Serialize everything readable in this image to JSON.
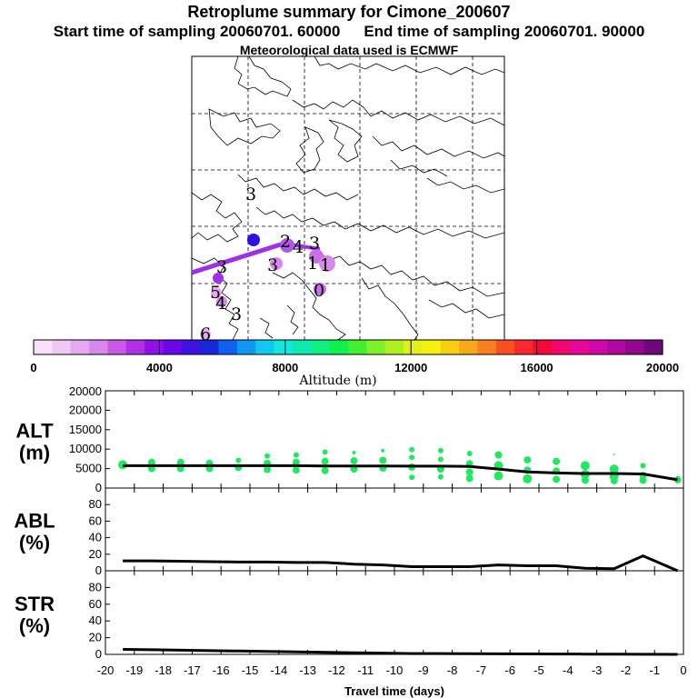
{
  "header": {
    "title": "Retroplume summary for Cimone_200607",
    "start_label": "Start time of sampling 20060701. 60000",
    "end_label": "End time of sampling 20060701. 90000",
    "met_label": "Meteorological data used is ECMWF"
  },
  "map": {
    "plume_labels": [
      "3",
      "2",
      "4",
      "1",
      "3",
      "3",
      "5",
      "4",
      "3",
      "6",
      "0",
      "3",
      "1"
    ],
    "colorbar": {
      "ticks": [
        "0",
        "4000",
        "8000",
        "12000",
        "16000",
        "20000"
      ],
      "label": "Altitude (m)",
      "colors": [
        "#f7e0f8",
        "#f0c8f4",
        "#e6a8f0",
        "#d888ec",
        "#c85ae6",
        "#b030e8",
        "#9010ec",
        "#6808e8",
        "#4010e0",
        "#1828d8",
        "#1060f0",
        "#1098f0",
        "#10c8f0",
        "#10e8e0",
        "#10e8b0",
        "#10f080",
        "#10f050",
        "#40f030",
        "#80f028",
        "#b0f020",
        "#e0f018",
        "#f8f010",
        "#f8d010",
        "#f8a818",
        "#f88020",
        "#f85020",
        "#f82830",
        "#f80838",
        "#f00870",
        "#e80898",
        "#d008a8",
        "#b008a0",
        "#900890",
        "#700878"
      ]
    }
  },
  "chart_data": [
    {
      "type": "line",
      "name": "ALT",
      "ylabel_line1": "ALT",
      "ylabel_line2": "(m)",
      "x": [
        -19.4,
        -18.4,
        -17.4,
        -16.4,
        -15.4,
        -14.4,
        -13.4,
        -12.4,
        -11.4,
        -10.4,
        -9.4,
        -8.4,
        -7.4,
        -6.4,
        -5.4,
        -4.4,
        -3.4,
        -2.4,
        -1.4,
        -0.2
      ],
      "y": [
        4600,
        4600,
        4600,
        4600,
        4600,
        4600,
        4600,
        4550,
        4550,
        4550,
        4500,
        4500,
        4450,
        3900,
        3300,
        3100,
        3000,
        3000,
        2900,
        1700
      ],
      "yticks": [
        "0",
        "5000",
        "10000",
        "15000",
        "20000"
      ],
      "ylim": [
        0,
        20000
      ],
      "xlim": [
        -20,
        0
      ],
      "scatter": [
        {
          "x": -19.4,
          "y": 4800,
          "r": 5
        },
        {
          "x": -18.4,
          "y": 5300,
          "r": 4
        },
        {
          "x": -18.4,
          "y": 4000,
          "r": 4
        },
        {
          "x": -17.4,
          "y": 5300,
          "r": 4
        },
        {
          "x": -17.4,
          "y": 4000,
          "r": 4
        },
        {
          "x": -16.4,
          "y": 5100,
          "r": 4
        },
        {
          "x": -16.4,
          "y": 4000,
          "r": 4
        },
        {
          "x": -15.4,
          "y": 5700,
          "r": 3
        },
        {
          "x": -15.4,
          "y": 4200,
          "r": 4
        },
        {
          "x": -14.4,
          "y": 6600,
          "r": 3
        },
        {
          "x": -14.4,
          "y": 5100,
          "r": 4
        },
        {
          "x": -14.4,
          "y": 3800,
          "r": 4
        },
        {
          "x": -13.4,
          "y": 6800,
          "r": 3
        },
        {
          "x": -13.4,
          "y": 5300,
          "r": 4
        },
        {
          "x": -13.4,
          "y": 3700,
          "r": 4
        },
        {
          "x": -12.4,
          "y": 7400,
          "r": 3
        },
        {
          "x": -12.4,
          "y": 5500,
          "r": 4
        },
        {
          "x": -12.4,
          "y": 3600,
          "r": 4
        },
        {
          "x": -11.4,
          "y": 7300,
          "r": 2
        },
        {
          "x": -11.4,
          "y": 5600,
          "r": 4
        },
        {
          "x": -11.4,
          "y": 3900,
          "r": 4
        },
        {
          "x": -10.4,
          "y": 7700,
          "r": 2
        },
        {
          "x": -10.4,
          "y": 5700,
          "r": 4
        },
        {
          "x": -10.4,
          "y": 4100,
          "r": 4
        },
        {
          "x": -9.4,
          "y": 7900,
          "r": 3
        },
        {
          "x": -9.4,
          "y": 6300,
          "r": 3
        },
        {
          "x": -9.4,
          "y": 4300,
          "r": 4
        },
        {
          "x": -9.4,
          "y": 2200,
          "r": 3
        },
        {
          "x": -8.4,
          "y": 7700,
          "r": 3
        },
        {
          "x": -8.4,
          "y": 5900,
          "r": 3
        },
        {
          "x": -8.4,
          "y": 3900,
          "r": 4
        },
        {
          "x": -8.4,
          "y": 2300,
          "r": 3
        },
        {
          "x": -7.4,
          "y": 7100,
          "r": 3
        },
        {
          "x": -7.4,
          "y": 5000,
          "r": 4
        },
        {
          "x": -7.4,
          "y": 3300,
          "r": 4
        },
        {
          "x": -7.4,
          "y": 2000,
          "r": 4
        },
        {
          "x": -6.4,
          "y": 6800,
          "r": 4
        },
        {
          "x": -6.4,
          "y": 4600,
          "r": 5
        },
        {
          "x": -6.4,
          "y": 2500,
          "r": 5
        },
        {
          "x": -5.4,
          "y": 5800,
          "r": 4
        },
        {
          "x": -5.4,
          "y": 3700,
          "r": 4
        },
        {
          "x": -5.4,
          "y": 1900,
          "r": 5
        },
        {
          "x": -4.4,
          "y": 5500,
          "r": 4
        },
        {
          "x": -4.4,
          "y": 3500,
          "r": 4
        },
        {
          "x": -4.4,
          "y": 1800,
          "r": 4
        },
        {
          "x": -3.4,
          "y": 4600,
          "r": 5
        },
        {
          "x": -3.4,
          "y": 2800,
          "r": 5
        },
        {
          "x": -3.4,
          "y": 1600,
          "r": 4
        },
        {
          "x": -2.4,
          "y": 6900,
          "r": 1
        },
        {
          "x": -2.4,
          "y": 3900,
          "r": 5
        },
        {
          "x": -2.4,
          "y": 2400,
          "r": 5
        },
        {
          "x": -2.4,
          "y": 1500,
          "r": 4
        },
        {
          "x": -1.4,
          "y": 4600,
          "r": 3
        },
        {
          "x": -1.4,
          "y": 2600,
          "r": 4
        },
        {
          "x": -1.4,
          "y": 1600,
          "r": 4
        },
        {
          "x": -0.2,
          "y": 1700,
          "r": 4
        }
      ]
    },
    {
      "type": "line",
      "name": "ABL",
      "ylabel_line1": "ABL",
      "ylabel_line2": "(%)",
      "x": [
        -19.4,
        -18.4,
        -17.4,
        -16.4,
        -15.4,
        -14.4,
        -13.4,
        -12.4,
        -11.4,
        -10.4,
        -9.4,
        -8.4,
        -7.4,
        -6.4,
        -5.4,
        -4.4,
        -3.4,
        -2.4,
        -1.4,
        -0.2
      ],
      "y": [
        12,
        12,
        11.5,
        11,
        10.5,
        10.5,
        10,
        10,
        8,
        7,
        5,
        5,
        5,
        7,
        6,
        6,
        3,
        2.5,
        18,
        0
      ],
      "yticks": [
        "0",
        "20",
        "40",
        "60",
        "80"
      ],
      "ylim": [
        0,
        100
      ],
      "xlim": [
        -20,
        0
      ]
    },
    {
      "type": "line",
      "name": "STR",
      "ylabel_line1": "STR",
      "ylabel_line2": "(%)",
      "x": [
        -19.4,
        -18.4,
        -17.4,
        -16.4,
        -15.4,
        -14.4,
        -13.4,
        -12.4,
        -11.4,
        -10.4,
        -9.4,
        -8.4,
        -7.4,
        -6.4,
        -5.4,
        -4.4,
        -3.4,
        -2.4,
        -1.4,
        -0.2
      ],
      "y": [
        6,
        5.5,
        5,
        4.5,
        4,
        3.5,
        3,
        2.5,
        2,
        1.5,
        1,
        1,
        0.8,
        0.6,
        0.5,
        0.4,
        0.3,
        0.2,
        0.1,
        0
      ],
      "yticks": [
        "0",
        "20",
        "40",
        "60",
        "80"
      ],
      "ylim": [
        0,
        100
      ],
      "xlim": [
        -20,
        0
      ],
      "xticks": [
        "-20",
        "-19",
        "-18",
        "-17",
        "-16",
        "-15",
        "-14",
        "-13",
        "-12",
        "-11",
        "-10",
        "-9",
        "-8",
        "-7",
        "-6",
        "-5",
        "-4",
        "-3",
        "-2",
        "-1",
        "0"
      ],
      "xlabel": "Travel time (days)"
    }
  ]
}
